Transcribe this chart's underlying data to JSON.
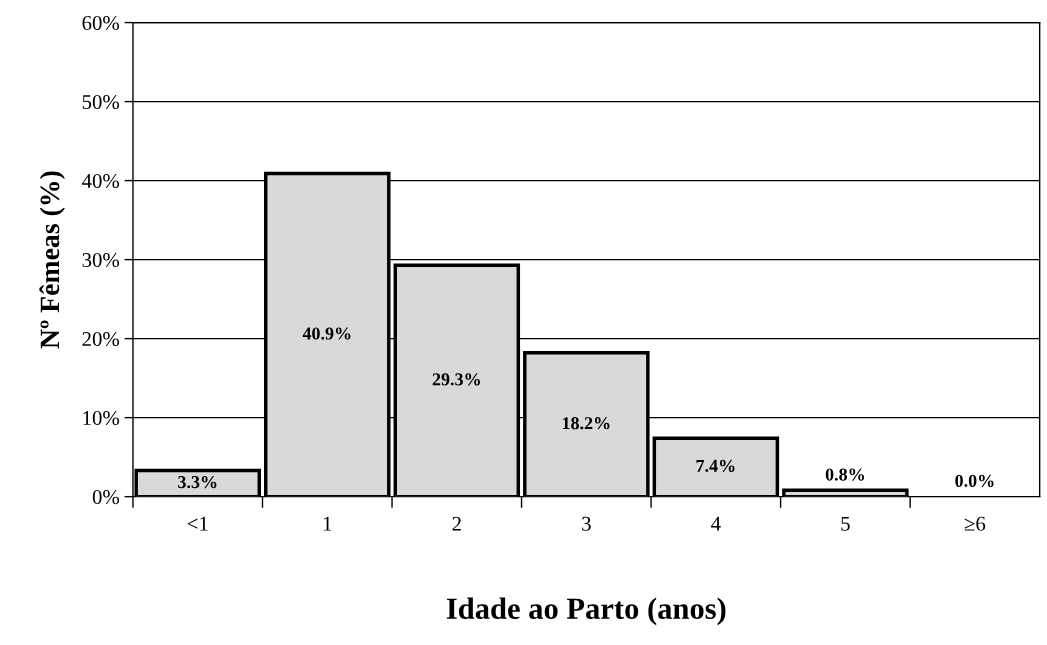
{
  "chart_data": {
    "type": "bar",
    "xlabel": "Idade ao Parto (anos)",
    "ylabel": "Nº Fêmeas (%)",
    "categories": [
      "<1",
      "1",
      "2",
      "3",
      "4",
      "5",
      "≥6"
    ],
    "values": [
      3.3,
      40.9,
      29.3,
      18.2,
      7.4,
      0.8,
      0.0
    ],
    "value_labels": [
      "3.3%",
      "40.9%",
      "29.3%",
      "18.2%",
      "7.4%",
      "0.8%",
      "0.0%"
    ],
    "color": "#d9d9d9",
    "ylim": [
      0,
      60
    ],
    "yticks": [
      {
        "value": 0,
        "label": "0%"
      },
      {
        "value": 10,
        "label": "10%"
      },
      {
        "value": 20,
        "label": "20%"
      },
      {
        "value": 30,
        "label": "30%"
      },
      {
        "value": 40,
        "label": "40%"
      },
      {
        "value": 50,
        "label": "50%"
      },
      {
        "value": 60,
        "label": "60%"
      }
    ],
    "grid": "y",
    "legend": false
  }
}
